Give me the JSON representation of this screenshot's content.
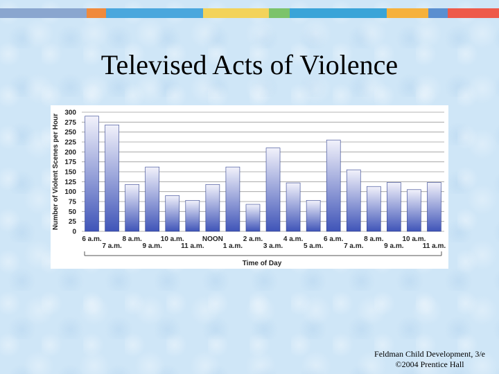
{
  "slide": {
    "title": "Televised Acts of Violence",
    "footer_line1": "Feldman Child Development, 3/e",
    "footer_line2": "©2004 Prentice Hall"
  },
  "colors": {
    "topbar": [
      "#8aa6cf",
      "#f08a3c",
      "#4aa7dd",
      "#f3d35a",
      "#7cc36b",
      "#3aa4d8",
      "#f6b13c",
      "#5a8fd0",
      "#ee5a4a"
    ],
    "bar_top": "#f2f2fb",
    "bar_bottom": "#3f54b8",
    "grid": "#9a9a9a"
  },
  "chart_data": {
    "type": "bar",
    "categories": [
      "6 a.m.",
      "7 a.m.",
      "8 a.m.",
      "9 a.m.",
      "10 a.m.",
      "11 a.m.",
      "NOON",
      "1 a.m.",
      "2 a.m.",
      "3 a.m.",
      "4 a.m.",
      "5 a.m.",
      "6 a.m.",
      "7 a.m.",
      "8 a.m.",
      "9 a.m.",
      "10 a.m.",
      "11 a.m."
    ],
    "values": [
      290,
      268,
      118,
      162,
      90,
      78,
      118,
      162,
      68,
      210,
      122,
      78,
      230,
      155,
      113,
      123,
      105,
      123
    ],
    "title": "",
    "xlabel": "Time of Day",
    "ylabel": "Number of Violent Scenes per Hour",
    "ylim": [
      0,
      300
    ],
    "yticks": [
      0,
      25,
      50,
      75,
      100,
      125,
      150,
      175,
      200,
      225,
      250,
      275,
      300
    ],
    "grid": true,
    "legend": "none"
  }
}
